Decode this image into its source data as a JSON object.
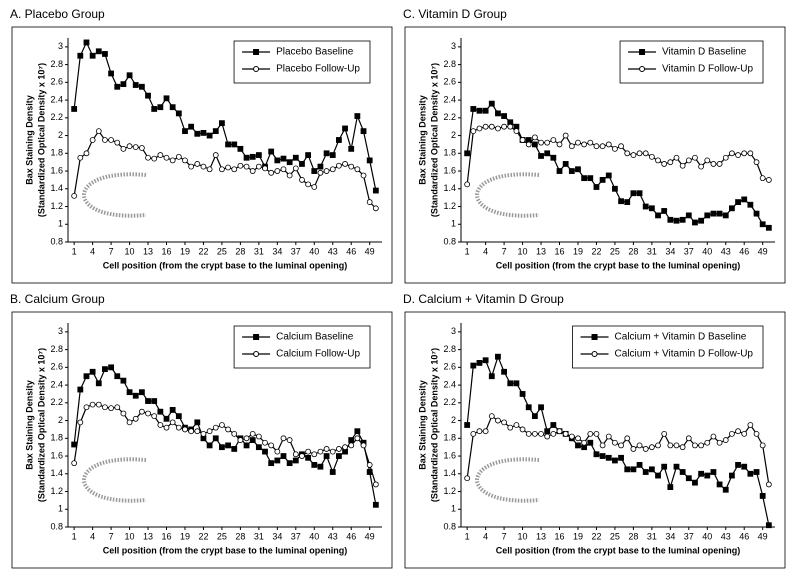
{
  "chart_data": [
    {
      "type": "line",
      "title": "A.  Placebo Group",
      "xlabel": "Cell position (from the crypt base to the luminal opening)",
      "ylabel": [
        "Bax Staining Density",
        "(Standardized Optical Density x 10⁷)"
      ],
      "x": [
        1,
        2,
        3,
        4,
        5,
        6,
        7,
        8,
        9,
        10,
        11,
        12,
        13,
        14,
        15,
        16,
        17,
        18,
        19,
        20,
        21,
        22,
        23,
        24,
        25,
        26,
        27,
        28,
        29,
        30,
        31,
        32,
        33,
        34,
        35,
        36,
        37,
        38,
        39,
        40,
        41,
        42,
        43,
        44,
        45,
        46,
        47,
        48,
        49,
        50
      ],
      "xlim": [
        0,
        51
      ],
      "xticks": [
        1,
        4,
        7,
        10,
        13,
        16,
        19,
        22,
        25,
        28,
        31,
        34,
        37,
        40,
        43,
        46,
        49
      ],
      "ylim": [
        0.8,
        3.1
      ],
      "yticks": [
        0.8,
        1,
        1.2,
        1.4,
        1.6,
        1.8,
        2,
        2.2,
        2.4,
        2.6,
        2.8,
        3
      ],
      "legend": "upper right",
      "series": [
        {
          "name": "Placebo Baseline",
          "color": "#000000",
          "marker": "square",
          "marker_fill": "#000000",
          "values": [
            2.3,
            2.9,
            3.05,
            2.9,
            2.95,
            2.92,
            2.7,
            2.55,
            2.58,
            2.68,
            2.57,
            2.55,
            2.45,
            2.3,
            2.32,
            2.42,
            2.32,
            2.25,
            2.05,
            2.1,
            2.02,
            2.03,
            2.0,
            2.05,
            2.14,
            1.9,
            1.9,
            1.85,
            1.75,
            1.76,
            1.78,
            1.65,
            1.82,
            1.72,
            1.74,
            1.7,
            1.75,
            1.68,
            1.78,
            1.6,
            1.65,
            1.8,
            1.78,
            1.95,
            2.08,
            1.85,
            2.22,
            2.05,
            1.72,
            1.38
          ]
        },
        {
          "name": "Placebo Follow-Up",
          "color": "#000000",
          "marker": "circle",
          "marker_fill": "#ffffff",
          "values": [
            1.32,
            1.75,
            1.8,
            1.95,
            2.05,
            1.95,
            1.95,
            1.92,
            1.85,
            1.88,
            1.87,
            1.86,
            1.75,
            1.74,
            1.78,
            1.75,
            1.72,
            1.76,
            1.72,
            1.65,
            1.68,
            1.65,
            1.62,
            1.78,
            1.62,
            1.64,
            1.62,
            1.66,
            1.65,
            1.6,
            1.65,
            1.63,
            1.58,
            1.6,
            1.62,
            1.55,
            1.63,
            1.5,
            1.45,
            1.42,
            1.58,
            1.6,
            1.62,
            1.66,
            1.68,
            1.65,
            1.62,
            1.55,
            1.25,
            1.18
          ]
        }
      ]
    },
    {
      "type": "line",
      "title": "C.  Vitamin D Group",
      "xlabel": "Cell position (from the crypt base to the luminal opening)",
      "ylabel": [
        "Bax Staining Density",
        "(Standardized Optical Density x 10⁷)"
      ],
      "x": [
        1,
        2,
        3,
        4,
        5,
        6,
        7,
        8,
        9,
        10,
        11,
        12,
        13,
        14,
        15,
        16,
        17,
        18,
        19,
        20,
        21,
        22,
        23,
        24,
        25,
        26,
        27,
        28,
        29,
        30,
        31,
        32,
        33,
        34,
        35,
        36,
        37,
        38,
        39,
        40,
        41,
        42,
        43,
        44,
        45,
        46,
        47,
        48,
        49,
        50
      ],
      "xlim": [
        0,
        51
      ],
      "xticks": [
        1,
        4,
        7,
        10,
        13,
        16,
        19,
        22,
        25,
        28,
        31,
        34,
        37,
        40,
        43,
        46,
        49
      ],
      "ylim": [
        0.8,
        3.1
      ],
      "yticks": [
        0.8,
        1,
        1.2,
        1.4,
        1.6,
        1.8,
        2,
        2.2,
        2.4,
        2.6,
        2.8,
        3
      ],
      "legend": "upper right",
      "series": [
        {
          "name": "Vitamin D Baseline",
          "color": "#000000",
          "marker": "square",
          "marker_fill": "#000000",
          "values": [
            1.8,
            2.3,
            2.28,
            2.28,
            2.36,
            2.25,
            2.22,
            2.15,
            2.1,
            1.95,
            1.95,
            1.9,
            1.77,
            1.8,
            1.75,
            1.6,
            1.68,
            1.6,
            1.62,
            1.52,
            1.52,
            1.42,
            1.5,
            1.55,
            1.4,
            1.26,
            1.25,
            1.35,
            1.35,
            1.2,
            1.18,
            1.1,
            1.15,
            1.05,
            1.04,
            1.05,
            1.1,
            1.02,
            1.04,
            1.1,
            1.12,
            1.12,
            1.1,
            1.18,
            1.25,
            1.28,
            1.22,
            1.12,
            1.0,
            0.96
          ]
        },
        {
          "name": "Vitamin D Follow-Up",
          "color": "#000000",
          "marker": "circle",
          "marker_fill": "#ffffff",
          "values": [
            1.45,
            2.05,
            2.08,
            2.1,
            2.1,
            2.08,
            2.1,
            2.1,
            2.05,
            1.95,
            1.9,
            1.98,
            1.92,
            1.92,
            1.95,
            1.9,
            2.0,
            1.88,
            1.92,
            1.9,
            1.92,
            1.88,
            1.88,
            1.9,
            1.85,
            1.88,
            1.8,
            1.78,
            1.8,
            1.8,
            1.76,
            1.72,
            1.68,
            1.7,
            1.75,
            1.66,
            1.72,
            1.75,
            1.65,
            1.72,
            1.68,
            1.68,
            1.75,
            1.8,
            1.78,
            1.8,
            1.8,
            1.7,
            1.52,
            1.5
          ]
        }
      ]
    },
    {
      "type": "line",
      "title": "B.  Calcium Group",
      "xlabel": "Cell position (from the crypt base to the luminal opening)",
      "ylabel": [
        "Bax Staining Density",
        "(Standardized Optical Density x 10⁷)"
      ],
      "x": [
        1,
        2,
        3,
        4,
        5,
        6,
        7,
        8,
        9,
        10,
        11,
        12,
        13,
        14,
        15,
        16,
        17,
        18,
        19,
        20,
        21,
        22,
        23,
        24,
        25,
        26,
        27,
        28,
        29,
        30,
        31,
        32,
        33,
        34,
        35,
        36,
        37,
        38,
        39,
        40,
        41,
        42,
        43,
        44,
        45,
        46,
        47,
        48,
        49,
        50
      ],
      "xlim": [
        0,
        51
      ],
      "xticks": [
        1,
        4,
        7,
        10,
        13,
        16,
        19,
        22,
        25,
        28,
        31,
        34,
        37,
        40,
        43,
        46,
        49
      ],
      "ylim": [
        0.8,
        3.1
      ],
      "yticks": [
        0.8,
        1,
        1.2,
        1.4,
        1.6,
        1.8,
        2,
        2.2,
        2.4,
        2.6,
        2.8,
        3
      ],
      "legend": "upper right",
      "series": [
        {
          "name": "Calcium Baseline",
          "color": "#000000",
          "marker": "square",
          "marker_fill": "#000000",
          "values": [
            1.73,
            2.35,
            2.5,
            2.55,
            2.42,
            2.58,
            2.6,
            2.5,
            2.45,
            2.32,
            2.28,
            2.32,
            2.22,
            2.22,
            2.1,
            2.02,
            2.12,
            2.05,
            1.92,
            1.9,
            1.98,
            1.8,
            1.72,
            1.8,
            1.7,
            1.72,
            1.68,
            1.8,
            1.72,
            1.78,
            1.7,
            1.65,
            1.52,
            1.55,
            1.6,
            1.52,
            1.55,
            1.62,
            1.58,
            1.5,
            1.48,
            1.6,
            1.42,
            1.6,
            1.65,
            1.78,
            1.88,
            1.75,
            1.42,
            1.05
          ]
        },
        {
          "name": "Calcium Follow-Up",
          "color": "#000000",
          "marker": "circle",
          "marker_fill": "#ffffff",
          "values": [
            1.52,
            1.98,
            2.15,
            2.18,
            2.18,
            2.15,
            2.14,
            2.15,
            2.08,
            1.98,
            2.02,
            2.1,
            2.08,
            2.05,
            1.95,
            1.92,
            1.98,
            1.92,
            1.9,
            1.88,
            1.88,
            1.85,
            1.88,
            1.92,
            1.95,
            1.9,
            1.85,
            1.78,
            1.8,
            1.85,
            1.82,
            1.75,
            1.72,
            1.65,
            1.8,
            1.78,
            1.62,
            1.6,
            1.65,
            1.62,
            1.65,
            1.68,
            1.65,
            1.68,
            1.7,
            1.72,
            1.8,
            1.72,
            1.5,
            1.28
          ]
        }
      ]
    },
    {
      "type": "line",
      "title": "D.  Calcium  + Vitamin D Group",
      "xlabel": "Cell position (from the crypt base to the luminal opening)",
      "ylabel": [
        "Bax Staining Density",
        "(Standardized Optical Density x 10⁷)"
      ],
      "x": [
        1,
        2,
        3,
        4,
        5,
        6,
        7,
        8,
        9,
        10,
        11,
        12,
        13,
        14,
        15,
        16,
        17,
        18,
        19,
        20,
        21,
        22,
        23,
        24,
        25,
        26,
        27,
        28,
        29,
        30,
        31,
        32,
        33,
        34,
        35,
        36,
        37,
        38,
        39,
        40,
        41,
        42,
        43,
        44,
        45,
        46,
        47,
        48,
        49,
        50
      ],
      "xlim": [
        0,
        51
      ],
      "xticks": [
        1,
        4,
        7,
        10,
        13,
        16,
        19,
        22,
        25,
        28,
        31,
        34,
        37,
        40,
        43,
        46,
        49
      ],
      "ylim": [
        0.8,
        3.1
      ],
      "yticks": [
        0.8,
        1,
        1.2,
        1.4,
        1.6,
        1.8,
        2,
        2.2,
        2.4,
        2.6,
        2.8,
        3
      ],
      "legend": "upper right",
      "series": [
        {
          "name": "Calcium + Vitamin D Baseline",
          "color": "#000000",
          "marker": "square",
          "marker_fill": "#000000",
          "values": [
            1.95,
            2.62,
            2.65,
            2.68,
            2.5,
            2.72,
            2.55,
            2.42,
            2.42,
            2.3,
            2.15,
            2.05,
            2.15,
            1.88,
            1.95,
            1.88,
            1.85,
            1.8,
            1.72,
            1.7,
            1.75,
            1.62,
            1.6,
            1.58,
            1.55,
            1.58,
            1.45,
            1.45,
            1.5,
            1.42,
            1.45,
            1.38,
            1.48,
            1.25,
            1.48,
            1.42,
            1.35,
            1.3,
            1.4,
            1.38,
            1.42,
            1.28,
            1.22,
            1.38,
            1.5,
            1.48,
            1.4,
            1.42,
            1.15,
            0.82
          ]
        },
        {
          "name": "Calcium + Vitamin D Follow-Up",
          "color": "#000000",
          "marker": "circle",
          "marker_fill": "#ffffff",
          "values": [
            1.35,
            1.85,
            1.88,
            1.88,
            2.05,
            2.0,
            1.98,
            1.92,
            1.95,
            1.9,
            1.85,
            1.85,
            1.85,
            1.82,
            1.85,
            1.88,
            1.85,
            1.82,
            1.8,
            1.75,
            1.85,
            1.85,
            1.72,
            1.82,
            1.75,
            1.72,
            1.8,
            1.68,
            1.72,
            1.68,
            1.7,
            1.72,
            1.85,
            1.72,
            1.72,
            1.7,
            1.8,
            1.72,
            1.72,
            1.75,
            1.82,
            1.75,
            1.78,
            1.85,
            1.88,
            1.85,
            1.95,
            1.85,
            1.72,
            1.28
          ]
        }
      ]
    }
  ]
}
